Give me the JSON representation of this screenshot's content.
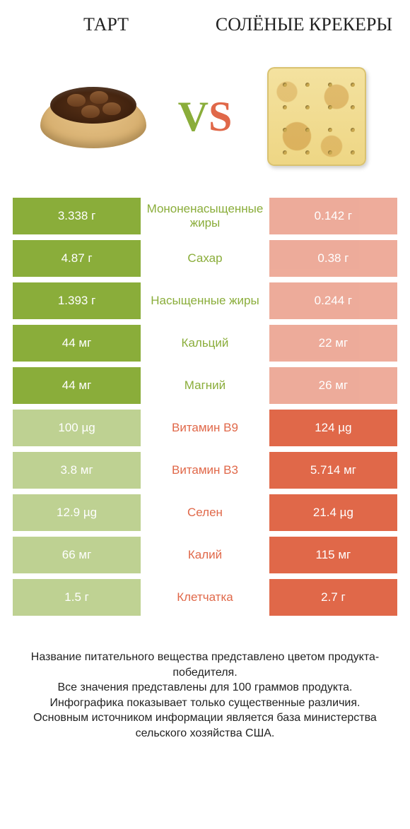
{
  "colors": {
    "left": "#8aad3a",
    "right": "#e06849",
    "text": "#222222"
  },
  "header": {
    "left": "ТАРТ",
    "right": "СОЛЁНЫЕ КРЕКЕРЫ"
  },
  "vs": {
    "v": "V",
    "s": "S"
  },
  "rows": [
    {
      "label": "Мононенасыщенные жиры",
      "left": "3.338 г",
      "right": "0.142 г",
      "winner": "left"
    },
    {
      "label": "Сахар",
      "left": "4.87 г",
      "right": "0.38 г",
      "winner": "left"
    },
    {
      "label": "Насыщенные жиры",
      "left": "1.393 г",
      "right": "0.244 г",
      "winner": "left"
    },
    {
      "label": "Кальций",
      "left": "44 мг",
      "right": "22 мг",
      "winner": "left"
    },
    {
      "label": "Магний",
      "left": "44 мг",
      "right": "26 мг",
      "winner": "left"
    },
    {
      "label": "Витамин B9",
      "left": "100 µg",
      "right": "124 µg",
      "winner": "right"
    },
    {
      "label": "Витамин B3",
      "left": "3.8 мг",
      "right": "5.714 мг",
      "winner": "right"
    },
    {
      "label": "Селен",
      "left": "12.9 µg",
      "right": "21.4 µg",
      "winner": "right"
    },
    {
      "label": "Калий",
      "left": "66 мг",
      "right": "115 мг",
      "winner": "right"
    },
    {
      "label": "Клетчатка",
      "left": "1.5 г",
      "right": "2.7 г",
      "winner": "right"
    }
  ],
  "footer": [
    "Название питательного вещества представлено цветом продукта-победителя.",
    "Все значения представлены для 100 граммов продукта.",
    "Инфографика показывает только существенные различия.",
    "Основным источником информации является база министерства сельского хозяйства США."
  ]
}
